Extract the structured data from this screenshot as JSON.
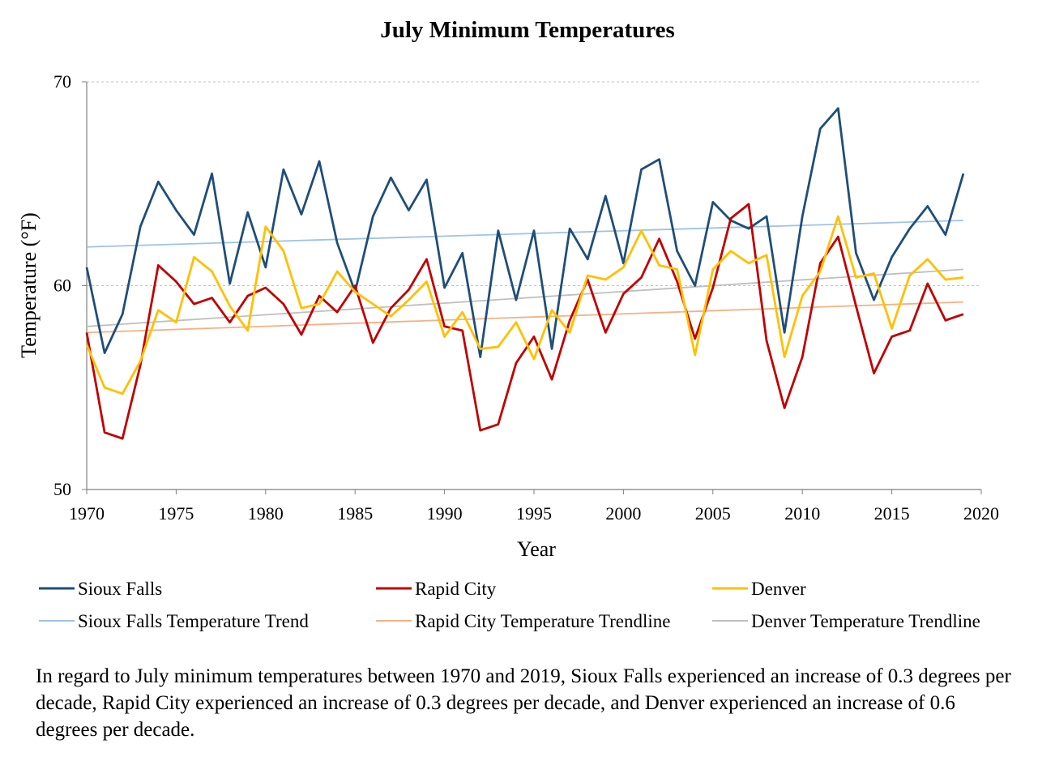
{
  "chart_data": {
    "type": "line",
    "title": "July Minimum Temperatures",
    "xlabel": "Year",
    "ylabel": "Temperature (°F)",
    "xlim": [
      1970,
      2020
    ],
    "ylim": [
      50,
      70
    ],
    "x_ticks": [
      1970,
      1975,
      1980,
      1985,
      1990,
      1995,
      2000,
      2005,
      2010,
      2015,
      2020
    ],
    "y_ticks": [
      50,
      60,
      70
    ],
    "grid": "horizontal dashed",
    "legend_position": "bottom",
    "x": [
      1970,
      1971,
      1972,
      1973,
      1974,
      1975,
      1976,
      1977,
      1978,
      1979,
      1980,
      1981,
      1982,
      1983,
      1984,
      1985,
      1986,
      1987,
      1988,
      1989,
      1990,
      1991,
      1992,
      1993,
      1994,
      1995,
      1996,
      1997,
      1998,
      1999,
      2000,
      2001,
      2002,
      2003,
      2004,
      2005,
      2006,
      2007,
      2008,
      2009,
      2010,
      2011,
      2012,
      2013,
      2014,
      2015,
      2016,
      2017,
      2018,
      2019
    ],
    "series": [
      {
        "name": "Sioux Falls",
        "color": "#1f4e79",
        "values": [
          60.9,
          56.7,
          58.6,
          62.9,
          65.1,
          63.7,
          62.5,
          65.5,
          60.1,
          63.6,
          60.9,
          65.7,
          63.5,
          66.1,
          62.1,
          59.7,
          63.4,
          65.3,
          63.7,
          65.2,
          59.9,
          61.6,
          56.5,
          62.7,
          59.3,
          62.7,
          56.9,
          62.8,
          61.3,
          64.4,
          61.1,
          65.7,
          66.2,
          61.7,
          60.0,
          64.1,
          63.2,
          62.8,
          63.4,
          57.7,
          63.4,
          67.7,
          68.7,
          61.6,
          59.3,
          61.4,
          62.8,
          63.9,
          62.5,
          65.5
        ]
      },
      {
        "name": "Rapid City",
        "color": "#c00000",
        "values": [
          57.7,
          52.8,
          52.5,
          56.1,
          61.0,
          60.2,
          59.1,
          59.4,
          58.2,
          59.5,
          59.9,
          59.1,
          57.6,
          59.5,
          58.7,
          60.0,
          57.2,
          58.9,
          59.8,
          61.3,
          58.0,
          57.8,
          52.9,
          53.2,
          56.2,
          57.5,
          55.4,
          58.3,
          60.3,
          57.7,
          59.6,
          60.4,
          62.3,
          60.2,
          57.4,
          59.9,
          63.3,
          64.0,
          57.3,
          54.0,
          56.5,
          61.1,
          62.4,
          59.0,
          55.7,
          57.5,
          57.8,
          60.1,
          58.3,
          58.6
        ]
      },
      {
        "name": "Denver",
        "color": "#ffc000",
        "values": [
          57.1,
          55.0,
          54.7,
          56.3,
          58.8,
          58.2,
          61.4,
          60.7,
          59.0,
          57.8,
          62.9,
          61.7,
          58.9,
          59.1,
          60.7,
          59.7,
          59.1,
          58.5,
          59.3,
          60.2,
          57.5,
          58.7,
          56.9,
          57.0,
          58.2,
          56.4,
          58.8,
          57.7,
          60.5,
          60.3,
          60.9,
          62.7,
          61.0,
          60.8,
          56.6,
          60.8,
          61.7,
          61.1,
          61.5,
          56.5,
          59.5,
          60.7,
          63.4,
          60.4,
          60.6,
          57.9,
          60.5,
          61.3,
          60.3,
          60.4
        ]
      },
      {
        "name": "Sioux Falls Temperature Trend",
        "color": "#9dc3e6",
        "trend": true,
        "values_at_ends": [
          61.9,
          63.2
        ]
      },
      {
        "name": "Rapid City Temperature Trendline",
        "color": "#f4b183",
        "trend": true,
        "values_at_ends": [
          57.7,
          59.2
        ]
      },
      {
        "name": "Denver Temperature Trendline",
        "color": "#bfbfbf",
        "trend": true,
        "values_at_ends": [
          58.0,
          60.8
        ]
      }
    ]
  },
  "caption": "In regard to July minimum temperatures between 1970 and 2019, Sioux Falls experienced an increase of 0.3 degrees per decade, Rapid City experienced an increase of 0.3 degrees per decade, and Denver experienced an increase of 0.6 degrees per decade."
}
